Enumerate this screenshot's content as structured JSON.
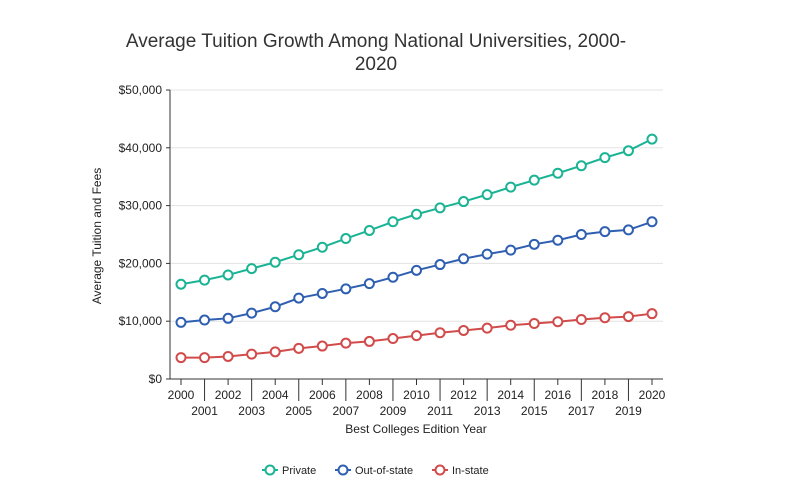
{
  "chart_data": {
    "type": "line",
    "title_lines": [
      "Average Tuition Growth Among National Universities, 2000-",
      "2020"
    ],
    "xlabel": "Best Colleges Edition Year",
    "ylabel": "Average Tuition and Fees",
    "ylim": [
      0,
      50000
    ],
    "yticks": [
      0,
      10000,
      20000,
      30000,
      40000,
      50000
    ],
    "ytick_labels": [
      "$0",
      "$10,000",
      "$20,000",
      "$30,000",
      "$40,000",
      "$50,000"
    ],
    "grid": "horizontal",
    "legend_position": "bottom",
    "x": [
      "2000",
      "2001",
      "2002",
      "2003",
      "2004",
      "2005",
      "2006",
      "2007",
      "2008",
      "2009",
      "2010",
      "2011",
      "2012",
      "2013",
      "2014",
      "2015",
      "2016",
      "2017",
      "2018",
      "2019",
      "2020"
    ],
    "series": [
      {
        "name": "Private",
        "color": "#1ab394",
        "values": [
          16400,
          17100,
          18000,
          19100,
          20200,
          21500,
          22800,
          24300,
          25700,
          27200,
          28500,
          29600,
          30700,
          31900,
          33200,
          34400,
          35600,
          36900,
          38300,
          39500,
          41500
        ]
      },
      {
        "name": "Out-of-state",
        "color": "#2e5fb0",
        "values": [
          9800,
          10200,
          10500,
          11400,
          12500,
          14000,
          14800,
          15600,
          16500,
          17600,
          18800,
          19800,
          20800,
          21600,
          22300,
          23300,
          24000,
          25000,
          25500,
          25800,
          27200
        ]
      },
      {
        "name": "In-state",
        "color": "#d14b4b",
        "values": [
          3700,
          3700,
          3900,
          4300,
          4700,
          5300,
          5700,
          6200,
          6500,
          7000,
          7500,
          8000,
          8400,
          8800,
          9300,
          9600,
          9900,
          10300,
          10600,
          10800,
          11300
        ]
      }
    ]
  }
}
